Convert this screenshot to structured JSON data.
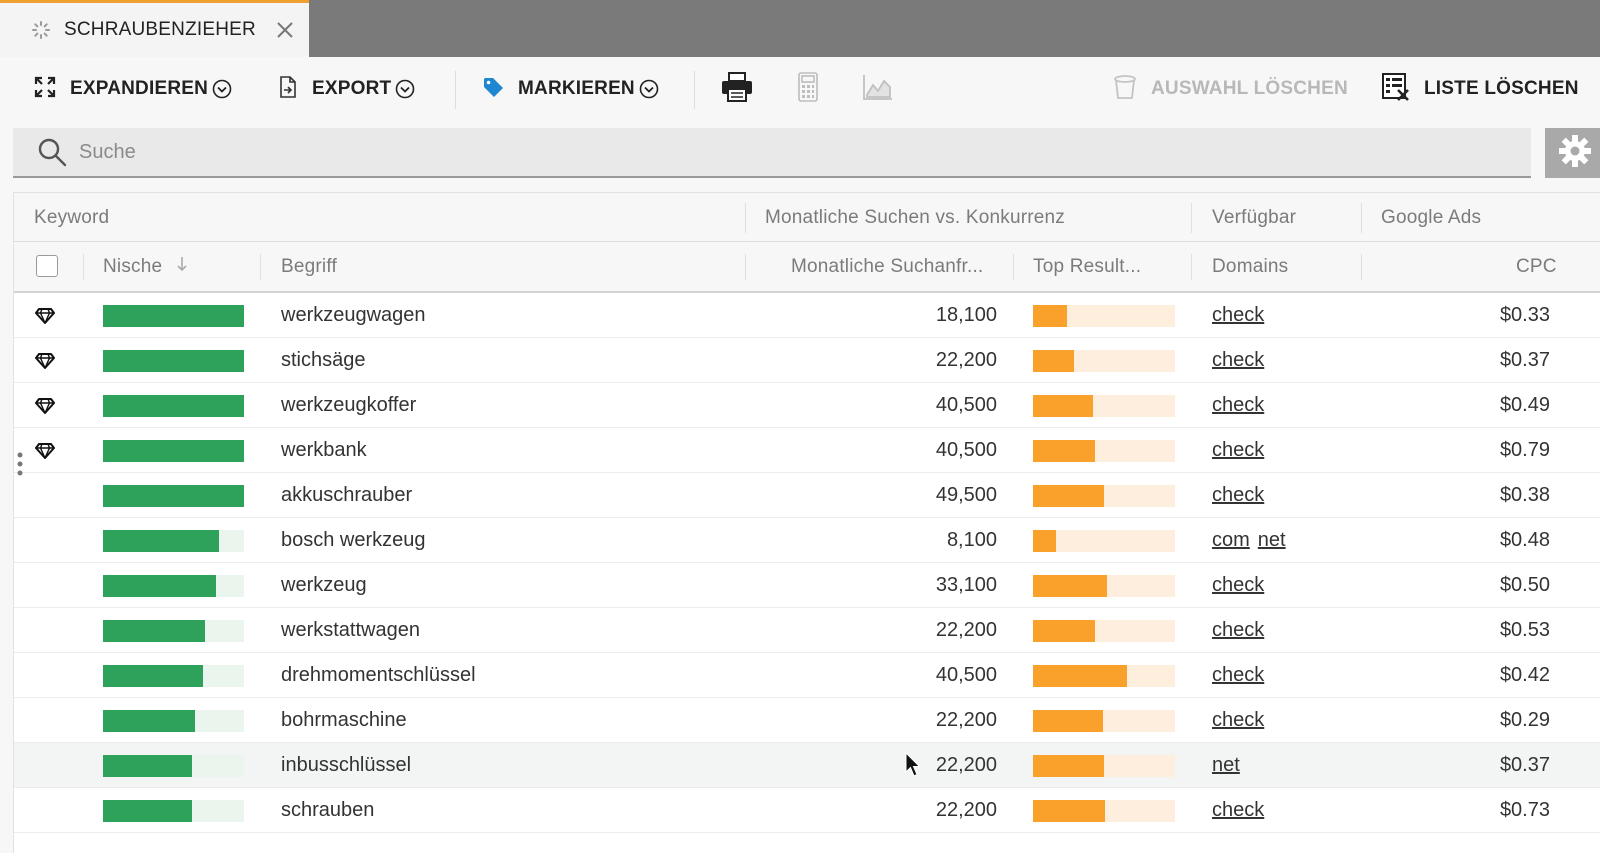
{
  "tab": {
    "title": "SCHRAUBENZIEHER"
  },
  "toolbar": {
    "expand": "EXPANDIEREN",
    "export": "EXPORT",
    "mark": "MARKIEREN",
    "delete_selection": "AUSWAHL LÖSCHEN",
    "delete_list": "LISTE LÖSCHEN"
  },
  "search": {
    "placeholder": "Suche",
    "value": ""
  },
  "table": {
    "group_headers": {
      "keyword": "Keyword",
      "searches_vs_competition": "Monatliche Suchen vs. Konkurrenz",
      "available": "Verfügbar",
      "google_ads": "Google Ads"
    },
    "columns": {
      "niche": "Nische",
      "term": "Begriff",
      "monthly_searches": "Monatliche Suchanfr...",
      "top_results": "Top Result...",
      "domains": "Domains",
      "cpc": "CPC"
    },
    "rows": [
      {
        "gem": true,
        "niche": 1.0,
        "term": "werkzeugwagen",
        "searches": "18,100",
        "top": 0.24,
        "domains": [
          "check"
        ],
        "cpc": "$0.33"
      },
      {
        "gem": true,
        "niche": 1.0,
        "term": "stichsäge",
        "searches": "22,200",
        "top": 0.29,
        "domains": [
          "check"
        ],
        "cpc": "$0.37"
      },
      {
        "gem": true,
        "niche": 1.0,
        "term": "werkzeugkoffer",
        "searches": "40,500",
        "top": 0.42,
        "domains": [
          "check"
        ],
        "cpc": "$0.49"
      },
      {
        "gem": true,
        "niche": 1.0,
        "term": "werkbank",
        "searches": "40,500",
        "top": 0.44,
        "domains": [
          "check"
        ],
        "cpc": "$0.79"
      },
      {
        "gem": false,
        "niche": 1.0,
        "term": "akkuschrauber",
        "searches": "49,500",
        "top": 0.5,
        "domains": [
          "check"
        ],
        "cpc": "$0.38"
      },
      {
        "gem": false,
        "niche": 0.82,
        "term": "bosch werkzeug",
        "searches": "8,100",
        "top": 0.16,
        "domains": [
          "com",
          "net"
        ],
        "cpc": "$0.48"
      },
      {
        "gem": false,
        "niche": 0.8,
        "term": "werkzeug",
        "searches": "33,100",
        "top": 0.52,
        "domains": [
          "check"
        ],
        "cpc": "$0.50"
      },
      {
        "gem": false,
        "niche": 0.72,
        "term": "werkstattwagen",
        "searches": "22,200",
        "top": 0.44,
        "domains": [
          "check"
        ],
        "cpc": "$0.53"
      },
      {
        "gem": false,
        "niche": 0.71,
        "term": "drehmomentschlüssel",
        "searches": "40,500",
        "top": 0.66,
        "domains": [
          "check"
        ],
        "cpc": "$0.42"
      },
      {
        "gem": false,
        "niche": 0.65,
        "term": "bohrmaschine",
        "searches": "22,200",
        "top": 0.49,
        "domains": [
          "check"
        ],
        "cpc": "$0.29"
      },
      {
        "gem": false,
        "niche": 0.63,
        "term": "inbusschlüssel",
        "searches": "22,200",
        "top": 0.5,
        "domains": [
          "net"
        ],
        "cpc": "$0.37",
        "highlight": true
      },
      {
        "gem": false,
        "niche": 0.63,
        "term": "schrauben",
        "searches": "22,200",
        "top": 0.51,
        "domains": [
          "check"
        ],
        "cpc": "$0.73"
      }
    ]
  },
  "colors": {
    "niche_fill": "#2ea25a",
    "niche_track": "#eaf5ee",
    "top_fill": "#f9a12a",
    "top_track": "#fdeedd",
    "tab_accent": "#f0a030"
  },
  "icons": [
    "spinner-icon",
    "close-icon",
    "expand-icon",
    "export-icon",
    "tag-icon",
    "printer-icon",
    "calculator-icon",
    "chart-icon",
    "trash-icon",
    "list-delete-icon",
    "search-icon",
    "gear-icon",
    "diamond-icon",
    "sort-down-icon",
    "chevron-down-icon"
  ]
}
